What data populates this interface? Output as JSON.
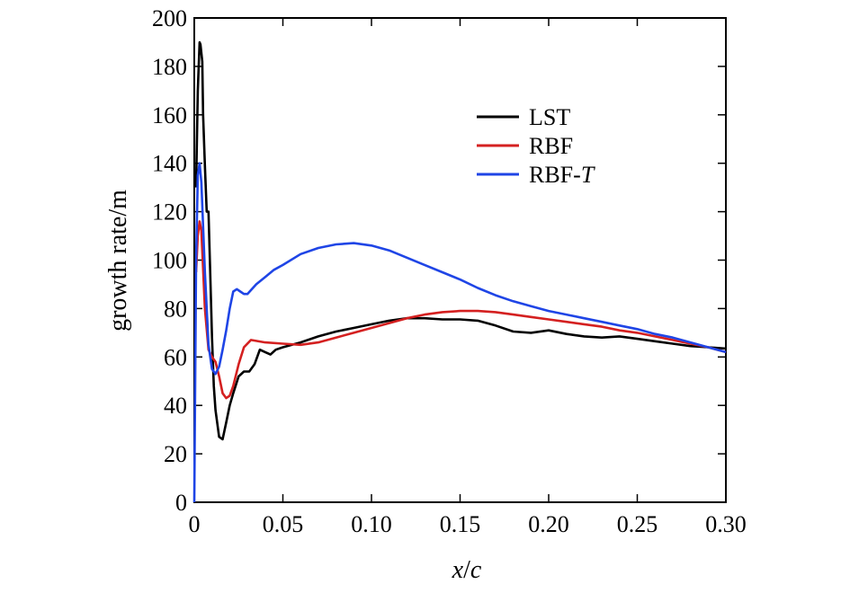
{
  "chart_data": {
    "type": "line",
    "title": "",
    "xlabel_var": "x",
    "xlabel_sep": "/",
    "xlabel_den": "c",
    "ylabel": "growth rate/m",
    "xlim": [
      0,
      0.3
    ],
    "ylim": [
      0,
      200
    ],
    "x_ticks": [
      0,
      0.05,
      0.1,
      0.15,
      0.2,
      0.25,
      0.3
    ],
    "x_tick_labels": [
      "0",
      "0.05",
      "0.10",
      "0.15",
      "0.20",
      "0.25",
      "0.30"
    ],
    "y_ticks": [
      0,
      20,
      40,
      60,
      80,
      100,
      120,
      140,
      160,
      180,
      200
    ],
    "y_tick_labels": [
      "0",
      "20",
      "40",
      "60",
      "80",
      "100",
      "120",
      "140",
      "160",
      "180",
      "200"
    ],
    "grid": false,
    "legend_position": "top-right",
    "series": [
      {
        "name": "LST",
        "name_main": "LST",
        "name_suffix": "",
        "color": "#000000",
        "x": [
          0.001,
          0.002,
          0.003,
          0.0035,
          0.0045,
          0.005,
          0.006,
          0.007,
          0.008,
          0.009,
          0.01,
          0.011,
          0.012,
          0.014,
          0.016,
          0.018,
          0.02,
          0.022,
          0.025,
          0.028,
          0.031,
          0.034,
          0.037,
          0.04,
          0.043,
          0.046,
          0.05,
          0.06,
          0.07,
          0.08,
          0.09,
          0.1,
          0.11,
          0.12,
          0.13,
          0.14,
          0.15,
          0.16,
          0.17,
          0.18,
          0.19,
          0.2,
          0.21,
          0.22,
          0.23,
          0.24,
          0.25,
          0.26,
          0.27,
          0.28,
          0.29,
          0.3
        ],
        "y": [
          130,
          170,
          190,
          189,
          182,
          160,
          139,
          120,
          120,
          95,
          68,
          48,
          38,
          27,
          26,
          33,
          40,
          45,
          52,
          54,
          54,
          57,
          63,
          62,
          61,
          63,
          64,
          66,
          68.5,
          70.5,
          72,
          73.5,
          75,
          76,
          76,
          75.5,
          75.5,
          75,
          73,
          70.5,
          70,
          71,
          69.5,
          68.5,
          68,
          68.5,
          67.5,
          66.5,
          65.5,
          64.5,
          64,
          63.5
        ]
      },
      {
        "name": "RBF",
        "name_main": "RBF",
        "name_suffix": "",
        "color": "#d42020",
        "x": [
          0.001,
          0.002,
          0.003,
          0.004,
          0.006,
          0.008,
          0.01,
          0.012,
          0.014,
          0.016,
          0.018,
          0.02,
          0.022,
          0.025,
          0.028,
          0.032,
          0.04,
          0.05,
          0.06,
          0.07,
          0.08,
          0.09,
          0.1,
          0.11,
          0.12,
          0.13,
          0.14,
          0.15,
          0.16,
          0.17,
          0.18,
          0.19,
          0.2,
          0.21,
          0.22,
          0.23,
          0.24,
          0.25,
          0.26,
          0.27,
          0.28,
          0.29,
          0.3
        ],
        "y": [
          95,
          110,
          116,
          112,
          80,
          63,
          60,
          58,
          52,
          45,
          43,
          44,
          48,
          57,
          64,
          67,
          66,
          65.5,
          65,
          66,
          68,
          70,
          72,
          74,
          76,
          77.5,
          78.5,
          79,
          79,
          78.5,
          77.5,
          76.5,
          75.5,
          74.5,
          73.5,
          72.5,
          71,
          70,
          68.5,
          67,
          65.5,
          64,
          62
        ]
      },
      {
        "name": "RBF-T",
        "name_main": "RBF-",
        "name_suffix": "T",
        "color": "#1f45e6",
        "x": [
          0.0,
          0.001,
          0.002,
          0.003,
          0.004,
          0.006,
          0.008,
          0.01,
          0.012,
          0.014,
          0.016,
          0.018,
          0.02,
          0.022,
          0.024,
          0.026,
          0.028,
          0.03,
          0.035,
          0.04,
          0.045,
          0.05,
          0.06,
          0.07,
          0.08,
          0.09,
          0.1,
          0.11,
          0.12,
          0.13,
          0.14,
          0.15,
          0.16,
          0.17,
          0.18,
          0.19,
          0.2,
          0.21,
          0.22,
          0.23,
          0.24,
          0.25,
          0.26,
          0.27,
          0.28,
          0.29,
          0.3
        ],
        "y": [
          0,
          100,
          135,
          140,
          132,
          95,
          65,
          55,
          53,
          56,
          63,
          71,
          80,
          87,
          88,
          87,
          86,
          86,
          90,
          93,
          96,
          98,
          102.5,
          105,
          106.5,
          107,
          106,
          104,
          101,
          98,
          95,
          92,
          88.5,
          85.5,
          83,
          81,
          79,
          77.5,
          76,
          74.5,
          73,
          71.5,
          69.5,
          68,
          66,
          64,
          62
        ]
      }
    ]
  }
}
